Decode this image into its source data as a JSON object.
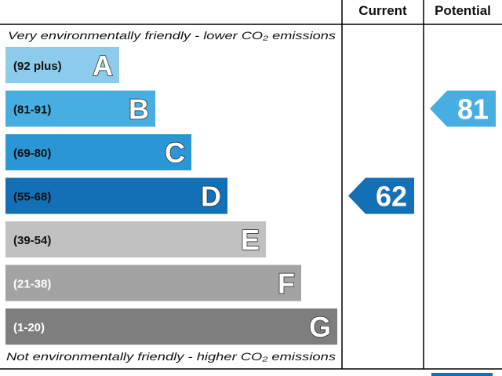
{
  "header": {
    "current": "Current",
    "potential": "Potential"
  },
  "notes": {
    "top": "Very environmentally friendly - lower CO₂ emissions",
    "bottom": "Not environmentally friendly - higher CO₂ emissions"
  },
  "chart_data": {
    "type": "bar",
    "bands": [
      {
        "letter": "A",
        "range": "(92 plus)",
        "color": "#8ccbeb",
        "letter_color": "#ffffff",
        "range_color": "#111111"
      },
      {
        "letter": "B",
        "range": "(81-91)",
        "color": "#47aee2",
        "letter_color": "#ffffff",
        "range_color": "#111111"
      },
      {
        "letter": "C",
        "range": "(69-80)",
        "color": "#2a96d6",
        "letter_color": "#ffffff",
        "range_color": "#111111"
      },
      {
        "letter": "D",
        "range": "(55-68)",
        "color": "#136fb6",
        "letter_color": "#ffffff",
        "range_color": "#111111"
      },
      {
        "letter": "E",
        "range": "(39-54)",
        "color": "#c1c1c1",
        "letter_color": "#ffffff",
        "range_color": "#111111"
      },
      {
        "letter": "F",
        "range": "(21-38)",
        "color": "#a3a3a3",
        "letter_color": "#ffffff",
        "range_color": "#ffffff"
      },
      {
        "letter": "G",
        "range": "(1-20)",
        "color": "#7e7e7e",
        "letter_color": "#ffffff",
        "range_color": "#ffffff"
      }
    ],
    "current": {
      "value": 62,
      "band": "D",
      "color": "#136fb6"
    },
    "potential": {
      "value": 81,
      "band": "B",
      "color": "#47aee2"
    }
  }
}
